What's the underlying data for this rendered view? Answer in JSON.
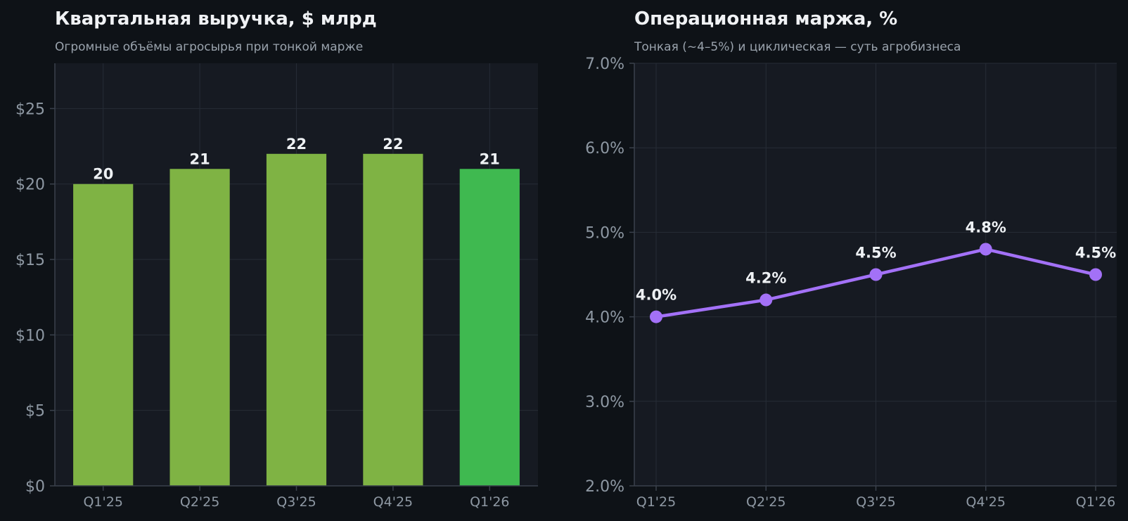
{
  "chart_data": [
    {
      "type": "bar",
      "title": "Квартальная выручка, $ млрд",
      "subtitle": "Огромные объёмы агросырья при тонкой марже",
      "categories": [
        "Q1'25",
        "Q2'25",
        "Q3'25",
        "Q4'25",
        "Q1'26"
      ],
      "values": [
        20,
        21,
        22,
        22,
        21
      ],
      "value_labels": [
        "20",
        "21",
        "22",
        "22",
        "21"
      ],
      "ylim": [
        0,
        28
      ],
      "yticks": [
        0,
        5,
        10,
        15,
        20,
        25
      ],
      "ytick_labels": [
        "$0",
        "$5",
        "$10",
        "$15",
        "$20",
        "$25"
      ],
      "colors": [
        "#7fb344",
        "#7fb344",
        "#7fb344",
        "#7fb344",
        "#3fb950"
      ],
      "grid": true
    },
    {
      "type": "line",
      "title": "Операционная маржа, %",
      "subtitle": "Тонкая (~4–5%) и циклическая — суть агробизнеса",
      "categories": [
        "Q1'25",
        "Q2'25",
        "Q3'25",
        "Q4'25",
        "Q1'26"
      ],
      "values": [
        4.0,
        4.2,
        4.5,
        4.8,
        4.5
      ],
      "value_labels": [
        "4.0%",
        "4.2%",
        "4.5%",
        "4.8%",
        "4.5%"
      ],
      "ylim": [
        2.0,
        7.0
      ],
      "yticks": [
        2.0,
        3.0,
        4.0,
        5.0,
        6.0,
        7.0
      ],
      "ytick_labels": [
        "2.0%",
        "3.0%",
        "4.0%",
        "5.0%",
        "6.0%",
        "7.0%"
      ],
      "color": "#a371f7",
      "grid": true
    }
  ]
}
